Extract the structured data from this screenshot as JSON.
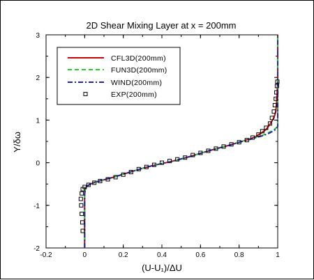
{
  "chart_data": {
    "type": "line",
    "title": "2D Shear Mixing Layer at x = 200mm",
    "xlabel": "(U-U₁)/ΔU",
    "ylabel": "Y/δω",
    "xlim": [
      -0.2,
      1.0
    ],
    "ylim": [
      -2,
      3
    ],
    "xticks": [
      "-0.2",
      "0",
      "0.2",
      "0.4",
      "0.6",
      "0.8",
      "1"
    ],
    "yticks": [
      "-2",
      "-1",
      "0",
      "1",
      "2",
      "3"
    ],
    "grid": false,
    "legend_position": "top-left",
    "series": [
      {
        "name": "CFL3D(200mm)",
        "style": "solid",
        "color": "#cc0000",
        "points": [
          [
            0.0,
            -2.0
          ],
          [
            0.0,
            -1.5
          ],
          [
            0.0,
            -1.0
          ],
          [
            0.0,
            -0.75
          ],
          [
            0.002,
            -0.62
          ],
          [
            0.01,
            -0.55
          ],
          [
            0.03,
            -0.5
          ],
          [
            0.06,
            -0.45
          ],
          [
            0.1,
            -0.4
          ],
          [
            0.15,
            -0.34
          ],
          [
            0.2,
            -0.27
          ],
          [
            0.25,
            -0.2
          ],
          [
            0.3,
            -0.13
          ],
          [
            0.35,
            -0.07
          ],
          [
            0.4,
            -0.02
          ],
          [
            0.45,
            0.03
          ],
          [
            0.5,
            0.09
          ],
          [
            0.55,
            0.15
          ],
          [
            0.6,
            0.22
          ],
          [
            0.65,
            0.29
          ],
          [
            0.7,
            0.35
          ],
          [
            0.75,
            0.41
          ],
          [
            0.8,
            0.48
          ],
          [
            0.85,
            0.55
          ],
          [
            0.88,
            0.6
          ],
          [
            0.91,
            0.68
          ],
          [
            0.94,
            0.78
          ],
          [
            0.96,
            0.9
          ],
          [
            0.98,
            1.05
          ],
          [
            0.99,
            1.2
          ],
          [
            0.995,
            1.45
          ],
          [
            0.998,
            1.7
          ],
          [
            1.0,
            2.0
          ],
          [
            1.0,
            2.5
          ],
          [
            1.0,
            3.0
          ]
        ]
      },
      {
        "name": "FUN3D(200mm)",
        "style": "dashed",
        "color": "#22cc22",
        "points": [
          [
            0.0,
            -2.0
          ],
          [
            0.0,
            -1.5
          ],
          [
            0.0,
            -1.0
          ],
          [
            0.0,
            -0.75
          ],
          [
            0.003,
            -0.62
          ],
          [
            0.012,
            -0.55
          ],
          [
            0.03,
            -0.5
          ],
          [
            0.06,
            -0.45
          ],
          [
            0.1,
            -0.4
          ],
          [
            0.15,
            -0.34
          ],
          [
            0.2,
            -0.27
          ],
          [
            0.25,
            -0.2
          ],
          [
            0.3,
            -0.13
          ],
          [
            0.35,
            -0.07
          ],
          [
            0.4,
            -0.02
          ],
          [
            0.45,
            0.03
          ],
          [
            0.5,
            0.09
          ],
          [
            0.55,
            0.15
          ],
          [
            0.6,
            0.22
          ],
          [
            0.65,
            0.29
          ],
          [
            0.7,
            0.35
          ],
          [
            0.75,
            0.41
          ],
          [
            0.8,
            0.48
          ],
          [
            0.85,
            0.55
          ],
          [
            0.88,
            0.59
          ],
          [
            0.92,
            0.64
          ],
          [
            0.95,
            0.7
          ],
          [
            0.98,
            0.77
          ],
          [
            0.995,
            0.83
          ],
          [
            1.0,
            0.9
          ],
          [
            1.0,
            1.5
          ],
          [
            1.0,
            2.0
          ],
          [
            1.0,
            2.5
          ],
          [
            1.0,
            3.0
          ]
        ]
      },
      {
        "name": "WIND(200mm)",
        "style": "dashdot",
        "color": "#2222aa",
        "points": [
          [
            0.0,
            -2.0
          ],
          [
            0.0,
            -1.5
          ],
          [
            0.0,
            -1.0
          ],
          [
            0.0,
            -0.75
          ],
          [
            0.003,
            -0.62
          ],
          [
            0.012,
            -0.55
          ],
          [
            0.03,
            -0.5
          ],
          [
            0.06,
            -0.45
          ],
          [
            0.1,
            -0.4
          ],
          [
            0.15,
            -0.34
          ],
          [
            0.2,
            -0.27
          ],
          [
            0.25,
            -0.2
          ],
          [
            0.3,
            -0.13
          ],
          [
            0.35,
            -0.07
          ],
          [
            0.4,
            -0.02
          ],
          [
            0.45,
            0.03
          ],
          [
            0.5,
            0.09
          ],
          [
            0.55,
            0.15
          ],
          [
            0.6,
            0.22
          ],
          [
            0.65,
            0.29
          ],
          [
            0.7,
            0.35
          ],
          [
            0.75,
            0.41
          ],
          [
            0.8,
            0.48
          ],
          [
            0.85,
            0.54
          ],
          [
            0.88,
            0.58
          ],
          [
            0.92,
            0.63
          ],
          [
            0.95,
            0.68
          ],
          [
            0.98,
            0.75
          ],
          [
            0.995,
            0.8
          ],
          [
            1.0,
            0.85
          ],
          [
            1.0,
            1.5
          ],
          [
            1.0,
            2.0
          ],
          [
            1.0,
            2.5
          ],
          [
            1.0,
            3.0
          ]
        ]
      },
      {
        "name": "EXP(200mm)",
        "style": "markers",
        "color": "#000000",
        "points": [
          [
            -0.01,
            -1.6
          ],
          [
            -0.012,
            -1.4
          ],
          [
            -0.015,
            -1.2
          ],
          [
            -0.018,
            -1.0
          ],
          [
            -0.02,
            -0.85
          ],
          [
            -0.015,
            -0.72
          ],
          [
            -0.01,
            -0.62
          ],
          [
            0.0,
            -0.57
          ],
          [
            0.02,
            -0.52
          ],
          [
            0.05,
            -0.47
          ],
          [
            0.08,
            -0.43
          ],
          [
            0.12,
            -0.39
          ],
          [
            0.16,
            -0.34
          ],
          [
            0.2,
            -0.28
          ],
          [
            0.24,
            -0.22
          ],
          [
            0.28,
            -0.15
          ],
          [
            0.32,
            -0.1
          ],
          [
            0.36,
            -0.05
          ],
          [
            0.4,
            0.0
          ],
          [
            0.44,
            0.04
          ],
          [
            0.48,
            0.08
          ],
          [
            0.52,
            0.12
          ],
          [
            0.56,
            0.18
          ],
          [
            0.6,
            0.23
          ],
          [
            0.64,
            0.28
          ],
          [
            0.68,
            0.33
          ],
          [
            0.72,
            0.38
          ],
          [
            0.76,
            0.43
          ],
          [
            0.8,
            0.48
          ],
          [
            0.84,
            0.53
          ],
          [
            0.87,
            0.59
          ],
          [
            0.9,
            0.66
          ],
          [
            0.92,
            0.74
          ],
          [
            0.94,
            0.82
          ],
          [
            0.96,
            0.92
          ],
          [
            0.97,
            1.05
          ],
          [
            0.98,
            1.2
          ],
          [
            0.985,
            1.35
          ],
          [
            0.99,
            1.5
          ],
          [
            0.993,
            1.65
          ],
          [
            0.996,
            1.8
          ],
          [
            0.998,
            1.9
          ]
        ]
      }
    ]
  }
}
